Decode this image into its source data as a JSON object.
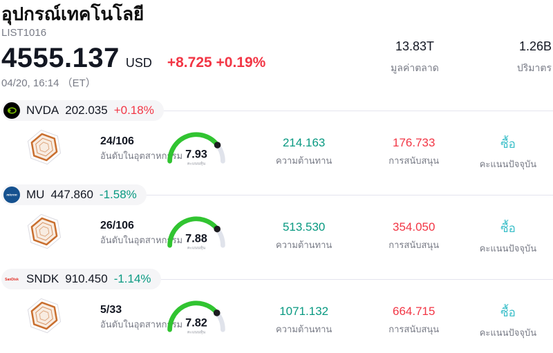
{
  "header": {
    "title": "อุปกรณ์เทคโนโลยี",
    "list_id": "LIST1016",
    "price": "4555.137",
    "currency": "USD",
    "change": "+8.725 +0.19%",
    "datetime": "04/20, 16:14 （ET）",
    "market_cap": {
      "value": "13.83T",
      "label": "มูลค่าตลาด"
    },
    "volume": {
      "value": "1.26B",
      "label": "ปริมาตร"
    }
  },
  "labels": {
    "industry_rank": "อันดับในอุตสาหกรรม",
    "stock_score": "คะแนนหุ้น",
    "resistance": "ความต้านทาน",
    "support": "การสนับสนุน",
    "current_score": "คะแนนปัจจุบัน"
  },
  "gauge_max": 10,
  "rows": [
    {
      "symbol": "NVDA",
      "logo": "nvidia",
      "price": "202.035",
      "change": "+0.18%",
      "change_dir": "up",
      "industry_rank": "24/106",
      "score": "7.93",
      "resistance": "214.163",
      "support": "176.733",
      "rating": "ซื้อ"
    },
    {
      "symbol": "MU",
      "logo": "micron",
      "price": "447.860",
      "change": "-1.58%",
      "change_dir": "down",
      "industry_rank": "26/106",
      "score": "7.88",
      "resistance": "513.530",
      "support": "354.050",
      "rating": "ซื้อ"
    },
    {
      "symbol": "SNDK",
      "logo": "sandisk",
      "price": "910.450",
      "change": "-1.14%",
      "change_dir": "down",
      "industry_rank": "5/33",
      "score": "7.82",
      "resistance": "1071.132",
      "support": "664.715",
      "rating": "ซื้อ"
    }
  ],
  "colors": {
    "positive_change": "#f23645",
    "negative_change": "#089981",
    "rating_buy": "#3bbfc9",
    "gauge_fill": "#31c431",
    "gauge_track": "#e0e3eb",
    "divider": "#e4e4ee",
    "pill_bg": "#f5f5f7",
    "text_primary": "#131722",
    "text_secondary": "#787b86",
    "nvidia_green": "#76b900",
    "micron_blue": "#15518f",
    "sandisk_red": "#e0281f",
    "hex_orange": "#c96f2f"
  }
}
